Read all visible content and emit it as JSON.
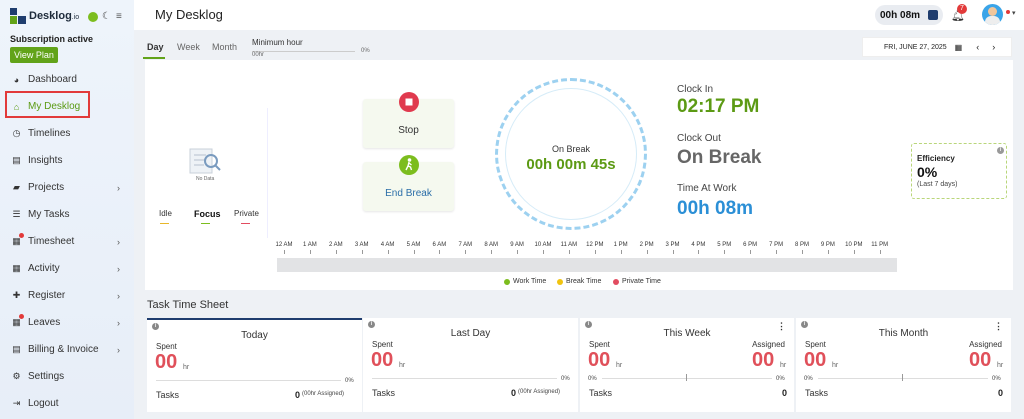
{
  "app": {
    "logo_text": "Desklog",
    "logo_suffix": ".io",
    "subscription": "Subscription active",
    "view_plan": "View Plan"
  },
  "sidebar": {
    "items": [
      {
        "label": "Dashboard",
        "icon": "palette-icon",
        "chevron": false
      },
      {
        "label": "My Desklog",
        "icon": "home-icon",
        "chevron": false,
        "active": true
      },
      {
        "label": "Timelines",
        "icon": "clock-icon",
        "chevron": false
      },
      {
        "label": "Insights",
        "icon": "book-icon",
        "chevron": false
      },
      {
        "label": "Projects",
        "icon": "folder-icon",
        "chevron": true
      },
      {
        "label": "My Tasks",
        "icon": "tasks-icon",
        "chevron": false
      },
      {
        "label": "Timesheet",
        "icon": "calendar-icon",
        "chevron": true,
        "dot": true
      },
      {
        "label": "Activity",
        "icon": "grid-icon",
        "chevron": true
      },
      {
        "label": "Register",
        "icon": "plus-icon",
        "chevron": true
      },
      {
        "label": "Leaves",
        "icon": "calendar-icon",
        "chevron": true,
        "dot": true
      },
      {
        "label": "Billing & Invoice",
        "icon": "invoice-icon",
        "chevron": true
      },
      {
        "label": "Settings",
        "icon": "gear-icon",
        "chevron": false
      },
      {
        "label": "Logout",
        "icon": "logout-icon",
        "chevron": false
      }
    ]
  },
  "header": {
    "title": "My Desklog",
    "timer": "00h 08m",
    "notifications": "7"
  },
  "tabs": {
    "day": "Day",
    "week": "Week",
    "month": "Month"
  },
  "min_hour": {
    "label": "Minimum hour",
    "value": "00hr",
    "percent": "0%"
  },
  "date": {
    "label": "FRI, JUNE 27, 2025"
  },
  "stats": {
    "no_data": "No Data",
    "idle": "Idle",
    "focus": "Focus",
    "private": "Private",
    "idle_v": "--",
    "focus_v": "--",
    "private_v": "--"
  },
  "actions": {
    "stop": "Stop",
    "end_break": "End Break"
  },
  "dial": {
    "status": "On Break",
    "elapsed": "00h 00m 45s"
  },
  "clock": {
    "in_label": "Clock In",
    "in_value": "02:17 PM",
    "out_label": "Clock Out",
    "out_value": "On Break",
    "work_label": "Time At Work",
    "work_value": "00h 08m"
  },
  "efficiency": {
    "title": "Efficiency",
    "value": "0%",
    "sub": "(Last 7 days)"
  },
  "timeline": {
    "hours": [
      "12 AM",
      "1 AM",
      "2 AM",
      "3 AM",
      "4 AM",
      "5 AM",
      "6 AM",
      "7 AM",
      "8 AM",
      "9 AM",
      "10 AM",
      "11 AM",
      "12 PM",
      "1 PM",
      "2 PM",
      "3 PM",
      "4 PM",
      "5 PM",
      "6 PM",
      "7 PM",
      "8 PM",
      "9 PM",
      "10 PM",
      "11 PM"
    ]
  },
  "legend": {
    "work": "Work Time",
    "brk": "Break Time",
    "private": "Private Time"
  },
  "colors": {
    "work": "#7cbd1e",
    "break": "#f1c40f",
    "private": "#e24c60",
    "accent": "#62a319",
    "blue": "#2b8fd6"
  },
  "task_sheet": {
    "title": "Task Time Sheet",
    "cards": [
      {
        "title": "Today",
        "spent_label": "Spent",
        "spent": "00",
        "unit": "hr",
        "percent": "0%",
        "tasks_label": "Tasks",
        "tasks": "0",
        "assigned_note": "(00hr Assigned)"
      },
      {
        "title": "Last Day",
        "spent_label": "Spent",
        "spent": "00",
        "unit": "hr",
        "percent": "0%",
        "tasks_label": "Tasks",
        "tasks": "0",
        "assigned_note": "(00hr Assigned)"
      },
      {
        "title": "This Week",
        "spent_label": "Spent",
        "spent": "00",
        "unit": "hr",
        "assigned_label": "Assigned",
        "assigned": "00",
        "percent_left": "0%",
        "percent_right": "0%",
        "tasks_label": "Tasks",
        "tasks": "0",
        "tasks_right": "0"
      },
      {
        "title": "This Month",
        "spent_label": "Spent",
        "spent": "00",
        "unit": "hr",
        "assigned_label": "Assigned",
        "assigned": "00",
        "percent_left": "0%",
        "percent_right": "0%",
        "tasks_label": "Tasks",
        "tasks": "0",
        "tasks_right": "0"
      }
    ]
  }
}
